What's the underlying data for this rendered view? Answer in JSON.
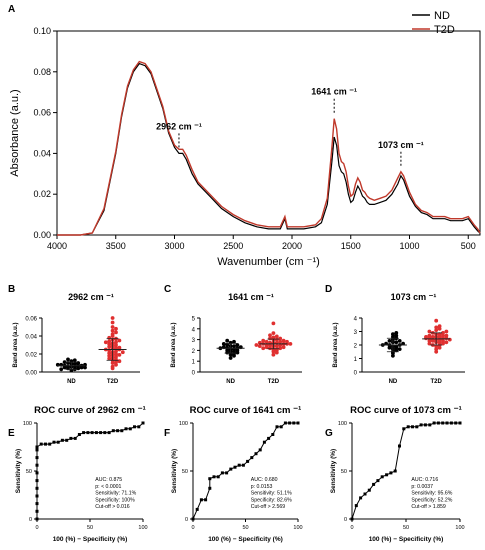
{
  "chart_data": [
    {
      "panel": "A",
      "type": "line",
      "xlabel": "Wavenumber  (cm ⁻¹)",
      "ylabel": "Absorbance (a.u.)",
      "xlim": [
        4000,
        400
      ],
      "ylim": [
        0,
        0.1
      ],
      "x_ticks": [
        "4000",
        "3500",
        "3000",
        "2500",
        "2000",
        "1500",
        "1000",
        "500"
      ],
      "y_ticks": [
        "0.00",
        "0.02",
        "0.04",
        "0.06",
        "0.08",
        "0.10"
      ],
      "legend": "top-right",
      "series": [
        {
          "name": "ND",
          "color": "#000000",
          "x": [
            4000,
            3800,
            3700,
            3600,
            3500,
            3450,
            3400,
            3350,
            3300,
            3250,
            3200,
            3100,
            3050,
            3000,
            2962,
            2930,
            2900,
            2850,
            2800,
            2700,
            2600,
            2500,
            2400,
            2300,
            2200,
            2100,
            2060,
            2040,
            2000,
            1900,
            1800,
            1750,
            1700,
            1660,
            1641,
            1620,
            1600,
            1580,
            1560,
            1540,
            1520,
            1500,
            1480,
            1460,
            1440,
            1420,
            1400,
            1380,
            1360,
            1340,
            1300,
            1250,
            1200,
            1150,
            1100,
            1073,
            1050,
            1000,
            950,
            900,
            850,
            800,
            750,
            700,
            650,
            600,
            550,
            500,
            450,
            420,
            400
          ],
          "y": [
            0.0,
            0.0,
            0.001,
            0.012,
            0.04,
            0.058,
            0.072,
            0.08,
            0.084,
            0.083,
            0.079,
            0.062,
            0.05,
            0.043,
            0.04,
            0.04,
            0.037,
            0.03,
            0.025,
            0.019,
            0.013,
            0.009,
            0.006,
            0.004,
            0.003,
            0.003,
            0.008,
            0.003,
            0.003,
            0.003,
            0.004,
            0.006,
            0.015,
            0.036,
            0.048,
            0.044,
            0.034,
            0.031,
            0.03,
            0.026,
            0.02,
            0.016,
            0.017,
            0.021,
            0.024,
            0.022,
            0.019,
            0.018,
            0.016,
            0.015,
            0.015,
            0.016,
            0.017,
            0.02,
            0.025,
            0.029,
            0.027,
            0.019,
            0.014,
            0.011,
            0.01,
            0.008,
            0.008,
            0.008,
            0.007,
            0.007,
            0.007,
            0.008,
            0.004,
            0.002,
            0.001
          ]
        },
        {
          "name": "T2D",
          "color": "#c0392b",
          "x": [
            4000,
            3800,
            3700,
            3600,
            3500,
            3450,
            3400,
            3350,
            3300,
            3250,
            3200,
            3100,
            3050,
            3000,
            2962,
            2930,
            2900,
            2850,
            2800,
            2700,
            2600,
            2500,
            2400,
            2300,
            2200,
            2100,
            2060,
            2040,
            2000,
            1900,
            1800,
            1750,
            1700,
            1660,
            1641,
            1620,
            1600,
            1580,
            1560,
            1540,
            1520,
            1500,
            1480,
            1460,
            1440,
            1420,
            1400,
            1380,
            1360,
            1340,
            1300,
            1250,
            1200,
            1150,
            1100,
            1073,
            1050,
            1000,
            950,
            900,
            850,
            800,
            750,
            700,
            650,
            600,
            550,
            500,
            450,
            420,
            400
          ],
          "y": [
            0.0,
            0.0,
            0.001,
            0.013,
            0.041,
            0.059,
            0.073,
            0.081,
            0.085,
            0.084,
            0.08,
            0.063,
            0.051,
            0.044,
            0.042,
            0.042,
            0.039,
            0.032,
            0.026,
            0.02,
            0.014,
            0.01,
            0.007,
            0.005,
            0.004,
            0.004,
            0.009,
            0.004,
            0.004,
            0.004,
            0.005,
            0.008,
            0.018,
            0.043,
            0.057,
            0.052,
            0.04,
            0.036,
            0.035,
            0.031,
            0.024,
            0.019,
            0.02,
            0.025,
            0.028,
            0.026,
            0.022,
            0.021,
            0.019,
            0.018,
            0.017,
            0.018,
            0.019,
            0.022,
            0.028,
            0.031,
            0.029,
            0.021,
            0.015,
            0.012,
            0.011,
            0.009,
            0.009,
            0.009,
            0.008,
            0.008,
            0.008,
            0.009,
            0.005,
            0.003,
            0.001
          ]
        }
      ],
      "annotations": [
        {
          "text": "2962 cm ⁻¹",
          "x": 2962,
          "y": 0.04
        },
        {
          "text": "1641 cm ⁻¹",
          "x": 1641,
          "y": 0.057
        },
        {
          "text": "1073 cm ⁻¹",
          "x": 1073,
          "y": 0.031
        }
      ]
    },
    {
      "panel": "B",
      "type": "scatter",
      "title": "2962 cm ⁻¹",
      "ylabel": "Band area (a.u.)",
      "categories": [
        "ND",
        "T2D"
      ],
      "ylim": [
        0,
        0.06
      ],
      "y_ticks": [
        "0.00",
        "0.02",
        "0.04",
        "0.06"
      ],
      "groups": [
        {
          "name": "ND",
          "color": "#000000",
          "mean": 0.007,
          "sd": 0.004,
          "values": [
            0.002,
            0.003,
            0.004,
            0.004,
            0.005,
            0.005,
            0.006,
            0.006,
            0.006,
            0.007,
            0.007,
            0.007,
            0.008,
            0.008,
            0.008,
            0.009,
            0.009,
            0.01,
            0.01,
            0.011,
            0.012,
            0.013,
            0.014,
            0.003,
            0.005
          ]
        },
        {
          "name": "T2D",
          "color": "#e03030",
          "mean": 0.025,
          "sd": 0.012,
          "values": [
            0.004,
            0.006,
            0.008,
            0.01,
            0.011,
            0.013,
            0.014,
            0.015,
            0.016,
            0.017,
            0.018,
            0.019,
            0.02,
            0.021,
            0.022,
            0.023,
            0.024,
            0.025,
            0.025,
            0.026,
            0.027,
            0.028,
            0.029,
            0.03,
            0.031,
            0.032,
            0.033,
            0.034,
            0.035,
            0.036,
            0.037,
            0.038,
            0.04,
            0.042,
            0.044,
            0.046,
            0.048,
            0.05,
            0.055,
            0.06,
            0.012,
            0.019,
            0.027,
            0.033,
            0.022
          ]
        }
      ]
    },
    {
      "panel": "C",
      "type": "scatter",
      "title": "1641 cm ⁻¹",
      "ylabel": "Band area (a.u.)",
      "categories": [
        "ND",
        "T2D"
      ],
      "ylim": [
        0,
        5
      ],
      "y_ticks": [
        "0",
        "1",
        "2",
        "3",
        "4",
        "5"
      ],
      "groups": [
        {
          "name": "ND",
          "color": "#000000",
          "mean": 2.2,
          "sd": 0.45,
          "values": [
            1.3,
            1.5,
            1.6,
            1.7,
            1.8,
            1.9,
            1.9,
            2.0,
            2.0,
            2.1,
            2.1,
            2.2,
            2.2,
            2.3,
            2.3,
            2.4,
            2.4,
            2.5,
            2.5,
            2.6,
            2.7,
            2.8,
            2.9,
            1.8,
            2.2
          ]
        },
        {
          "name": "T2D",
          "color": "#e03030",
          "mean": 2.6,
          "sd": 0.45,
          "values": [
            1.6,
            1.8,
            1.9,
            2.0,
            2.1,
            2.1,
            2.2,
            2.2,
            2.3,
            2.3,
            2.4,
            2.4,
            2.5,
            2.5,
            2.5,
            2.6,
            2.6,
            2.6,
            2.7,
            2.7,
            2.7,
            2.8,
            2.8,
            2.9,
            2.9,
            3.0,
            3.0,
            3.1,
            3.1,
            3.2,
            3.3,
            3.4,
            3.6,
            4.5,
            2.4,
            2.6,
            2.8,
            2.2,
            2.5,
            2.7
          ]
        }
      ]
    },
    {
      "panel": "D",
      "type": "scatter",
      "title": "1073 cm ⁻¹",
      "ylabel": "Band area (a.u.)",
      "categories": [
        "ND",
        "T2D"
      ],
      "ylim": [
        0,
        4
      ],
      "y_ticks": [
        "0",
        "1",
        "2",
        "3",
        "4"
      ],
      "groups": [
        {
          "name": "ND",
          "color": "#000000",
          "mean": 2.0,
          "sd": 0.5,
          "values": [
            1.2,
            1.4,
            1.5,
            1.6,
            1.7,
            1.8,
            1.8,
            1.9,
            1.9,
            2.0,
            2.0,
            2.1,
            2.1,
            2.2,
            2.2,
            2.3,
            2.4,
            2.5,
            2.6,
            2.7,
            2.8,
            2.9,
            1.7,
            2.0,
            2.3
          ]
        },
        {
          "name": "T2D",
          "color": "#e03030",
          "mean": 2.45,
          "sd": 0.45,
          "values": [
            1.5,
            1.7,
            1.8,
            1.9,
            2.0,
            2.0,
            2.1,
            2.1,
            2.2,
            2.2,
            2.3,
            2.3,
            2.4,
            2.4,
            2.4,
            2.5,
            2.5,
            2.5,
            2.6,
            2.6,
            2.6,
            2.7,
            2.7,
            2.8,
            2.8,
            2.9,
            2.9,
            3.0,
            3.0,
            3.1,
            3.2,
            3.3,
            3.4,
            3.8,
            2.3,
            2.5,
            2.7,
            2.2,
            2.4,
            2.6
          ]
        }
      ]
    },
    {
      "panel": "E",
      "type": "line",
      "title": "ROC curve of 2962 cm ⁻¹",
      "xlabel": "100 (%) − Specificity (%)",
      "ylabel": "Sensitivity (%)",
      "xlim": [
        0,
        100
      ],
      "ylim": [
        0,
        100
      ],
      "x_ticks": [
        "0",
        "50",
        "100"
      ],
      "y_ticks": [
        "0",
        "50",
        "100"
      ],
      "x": [
        0,
        0,
        0,
        0,
        0,
        0,
        0,
        0,
        0,
        0,
        0,
        4,
        8,
        12,
        16,
        20,
        24,
        28,
        32,
        36,
        40,
        44,
        48,
        52,
        56,
        60,
        64,
        68,
        72,
        76,
        80,
        84,
        88,
        92,
        96,
        100
      ],
      "y": [
        0,
        8,
        16,
        24,
        32,
        40,
        48,
        56,
        64,
        72,
        75,
        78,
        78,
        78,
        80,
        80,
        82,
        82,
        84,
        84,
        88,
        90,
        90,
        90,
        90,
        90,
        90,
        90,
        92,
        92,
        92,
        94,
        94,
        96,
        96,
        100
      ],
      "stats": [
        "AUC: 0.875",
        "p: < 0.0001",
        "Sensitivity: 71.1%",
        "Specificity: 100%",
        "Cut-off > 0.016"
      ]
    },
    {
      "panel": "F",
      "type": "line",
      "title": "ROC curve of 1641 cm ⁻¹",
      "xlabel": "100 (%) − Specificity (%)",
      "ylabel": "Sensitivity (%)",
      "xlim": [
        0,
        100
      ],
      "ylim": [
        0,
        100
      ],
      "x_ticks": [
        "0",
        "50",
        "100"
      ],
      "y_ticks": [
        "0",
        "50",
        "100"
      ],
      "x": [
        0,
        4,
        8,
        12,
        16,
        16,
        20,
        24,
        28,
        32,
        36,
        40,
        44,
        48,
        52,
        56,
        60,
        64,
        68,
        72,
        76,
        80,
        84,
        88,
        92,
        96,
        100
      ],
      "y": [
        0,
        10,
        20,
        20,
        32,
        42,
        44,
        44,
        48,
        48,
        52,
        54,
        56,
        56,
        60,
        64,
        68,
        72,
        80,
        84,
        88,
        96,
        96,
        100,
        100,
        100,
        100
      ],
      "stats": [
        "AUC: 0.680",
        "p: 0.0153",
        "Sensitivity: 51.1%",
        "Specificity: 82.6%",
        "Cut-off > 2.569"
      ]
    },
    {
      "panel": "G",
      "type": "line",
      "title": "ROC curve of 1073 cm ⁻¹",
      "xlabel": "100 (%) − Specificity (%)",
      "ylabel": "Sensitivity (%)",
      "xlim": [
        0,
        100
      ],
      "ylim": [
        0,
        100
      ],
      "x_ticks": [
        "0",
        "50",
        "100"
      ],
      "y_ticks": [
        "0",
        "50",
        "100"
      ],
      "x": [
        0,
        4,
        8,
        12,
        16,
        20,
        24,
        28,
        32,
        36,
        40,
        44,
        48,
        52,
        56,
        60,
        64,
        68,
        72,
        76,
        80,
        84,
        88,
        92,
        96,
        100
      ],
      "y": [
        0,
        14,
        22,
        26,
        30,
        36,
        40,
        44,
        46,
        48,
        50,
        76,
        94,
        96,
        96,
        96,
        98,
        98,
        98,
        100,
        100,
        100,
        100,
        100,
        100,
        100
      ],
      "stats": [
        "AUC: 0.716",
        "p: 0.0037",
        "Sensitivity: 95.6%",
        "Specificity: 52.2%",
        "Cut-off > 1.859"
      ]
    }
  ]
}
